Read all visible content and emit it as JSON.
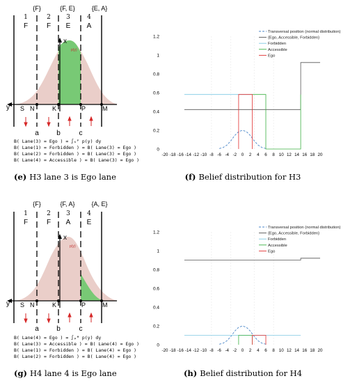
{
  "figure": {
    "panels": [
      {
        "id": "e",
        "caption_letter": "(e)",
        "caption_text": "H3 lane 3 is Ego lane",
        "set_labels": [
          "{F}",
          "{F, E}",
          "{E, A}"
        ],
        "lane_numbers": [
          "1",
          "2",
          "3",
          "4"
        ],
        "lane_letters": [
          "F",
          "F",
          "E",
          "A"
        ],
        "axis_letters": {
          "x": "x",
          "y": "y"
        },
        "point_labels": [
          "S",
          "N",
          "K",
          "P",
          "M"
        ],
        "bottom_labels": [
          "a",
          "b",
          "c"
        ],
        "density_label": "p(y)",
        "equations": [
          "B( Lane(3) = Ego ) = ∫ₖᴾ p(y) dy",
          "B( Lane(1) = Forbidden ) = B( Lane(3) = Ego )",
          "B( Lane(2) = Forbidden ) = B( Lane(3) = Ego )",
          "B( Lane(4) = Accessible ) = B( Lane(3) = Ego )"
        ]
      },
      {
        "id": "g",
        "caption_letter": "(g)",
        "caption_text": "H4 lane 4 is Ego lane",
        "set_labels": [
          "{F}",
          "{F, A}",
          "{A, E}"
        ],
        "lane_numbers": [
          "1",
          "2",
          "3",
          "4"
        ],
        "lane_letters": [
          "F",
          "F",
          "A",
          "E"
        ],
        "axis_letters": {
          "x": "x",
          "y": "y"
        },
        "point_labels": [
          "S",
          "N",
          "K",
          "P",
          "M"
        ],
        "bottom_labels": [
          "a",
          "b",
          "c"
        ],
        "density_label": "p(y)",
        "equations": [
          "B( Lane(4) = Ego ) = ∫ₚᴹ p(y) dy",
          "B( Lane(3) = Accessible ) = B( Lane(4) = Ego )",
          "B( Lane(1) = Forbidden ) = B( Lane(4) = Ego )",
          "B( Lane(2) = Forbidden ) = B( Lane(4) = Ego )"
        ]
      }
    ]
  },
  "chart_data": [
    {
      "type": "line",
      "panel": "f",
      "caption_letter": "(f)",
      "caption_text": "Belief distribution for H3",
      "xlim": [
        -20,
        20
      ],
      "ylim": [
        0,
        1.2
      ],
      "xticks": [
        -20,
        -18,
        -16,
        -14,
        -12,
        -10,
        -8,
        -6,
        -4,
        -2,
        0,
        2,
        4,
        6,
        8,
        10,
        12,
        14,
        16,
        18,
        20
      ],
      "yticks": [
        0,
        0.2,
        0.4,
        0.6,
        0.8,
        1,
        1.2
      ],
      "ytick_labels": [
        "0",
        "0.2",
        "0.4",
        "0.6",
        "0.8",
        "1",
        "1.2"
      ],
      "legend": {
        "placement": "top-right",
        "entries": [
          "Transversal position (normal distribution)",
          "{Ego, Accessible, Forbidden}",
          "Forbidden",
          "Accessible",
          "Ego"
        ]
      },
      "colors": {
        "normal": "#4a86c8",
        "all": "#555555",
        "forbidden": "#7ec8e3",
        "accessible": "#3cb043",
        "ego": "#e03030"
      },
      "series": [
        {
          "name": "Transversal position (normal distribution)",
          "style": "dashed",
          "x": [
            -6,
            -5,
            -4,
            -3,
            -2,
            -1,
            0,
            1,
            2,
            3,
            4,
            5,
            6
          ],
          "y": [
            0.005,
            0.016,
            0.042,
            0.088,
            0.145,
            0.185,
            0.2,
            0.185,
            0.145,
            0.088,
            0.042,
            0.016,
            0.005
          ]
        },
        {
          "name": "{Ego, Accessible, Forbidden}",
          "x": [
            -15,
            15,
            15,
            15,
            20
          ],
          "y": [
            0.42,
            0.42,
            0.42,
            0.92,
            0.92
          ]
        },
        {
          "name": "Forbidden",
          "x": [
            -15,
            2.5
          ],
          "y": [
            0.58,
            0.58
          ]
        },
        {
          "name": "Accessible",
          "x": [
            2.5,
            6,
            6,
            15,
            15
          ],
          "y": [
            0.58,
            0.58,
            0,
            0,
            0.58
          ]
        },
        {
          "name": "Ego",
          "x": [
            -1,
            -1,
            2.5,
            2.5
          ],
          "y": [
            0,
            0.58,
            0.58,
            0
          ]
        }
      ]
    },
    {
      "type": "line",
      "panel": "h",
      "caption_letter": "(h)",
      "caption_text": "Belief distribution for H4",
      "xlim": [
        -20,
        20
      ],
      "ylim": [
        0,
        1.2
      ],
      "xticks": [
        -20,
        -18,
        -16,
        -14,
        -12,
        -10,
        -8,
        -6,
        -4,
        -2,
        0,
        2,
        4,
        6,
        8,
        10,
        12,
        14,
        16,
        18,
        20
      ],
      "yticks": [
        0,
        0.2,
        0.4,
        0.6,
        0.8,
        1,
        1.2
      ],
      "ytick_labels": [
        "0",
        "0.2",
        "0.4",
        "0.6",
        "0.8",
        "1",
        "1.2"
      ],
      "legend": {
        "placement": "top-right",
        "entries": [
          "Transversal position (normal distribution)",
          "{Ego, Accessible, Forbidden}",
          "Forbidden",
          "Accessible",
          "Ego"
        ]
      },
      "colors": {
        "normal": "#4a86c8",
        "all": "#555555",
        "forbidden": "#7ec8e3",
        "accessible": "#3cb043",
        "ego": "#e03030"
      },
      "series": [
        {
          "name": "Transversal position (normal distribution)",
          "style": "dashed",
          "x": [
            -6,
            -5,
            -4,
            -3,
            -2,
            -1,
            0,
            1,
            2,
            3,
            4,
            5,
            6
          ],
          "y": [
            0.005,
            0.016,
            0.042,
            0.088,
            0.145,
            0.185,
            0.2,
            0.185,
            0.145,
            0.088,
            0.042,
            0.016,
            0.005
          ]
        },
        {
          "name": "{Ego, Accessible, Forbidden}",
          "x": [
            -15,
            15,
            15,
            15,
            20
          ],
          "y": [
            0.9,
            0.9,
            0.9,
            0.92,
            0.92
          ]
        },
        {
          "name": "Forbidden",
          "x": [
            -15,
            15
          ],
          "y": [
            0.1,
            0.1
          ]
        },
        {
          "name": "Accessible",
          "x": [
            -1,
            -1,
            2.5,
            2.5
          ],
          "y": [
            0,
            0.1,
            0.1,
            0
          ]
        },
        {
          "name": "Ego",
          "x": [
            2.5,
            2.5,
            6,
            6
          ],
          "y": [
            0,
            0.1,
            0.1,
            0
          ]
        }
      ]
    }
  ]
}
